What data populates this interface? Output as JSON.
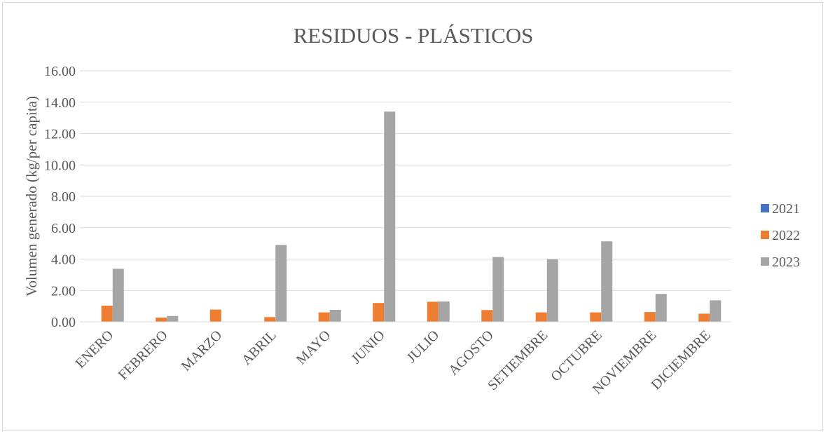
{
  "chart_data": {
    "type": "bar",
    "title": "RESIDUOS - PLÁSTICOS",
    "xlabel": "",
    "ylabel": "Volumen generado (kg/per capita)",
    "ylim": [
      0,
      16
    ],
    "yticks": [
      "0.00",
      "2.00",
      "4.00",
      "6.00",
      "8.00",
      "10.00",
      "12.00",
      "14.00",
      "16.00"
    ],
    "grid": true,
    "legend_position": "right",
    "categories": [
      "ENERO",
      "FEBRERO",
      "MARZO",
      "ABRIL",
      "MAYO",
      "JUNIO",
      "JULIO",
      "AGOSTO",
      "SETIEMBRE",
      "OCTUBRE",
      "NOVIEMBRE",
      "DICIEMBRE"
    ],
    "series": [
      {
        "name": "2021",
        "color": "#4472c4",
        "values": [
          0,
          0.02,
          0,
          0,
          0.02,
          0,
          0.02,
          0,
          0.02,
          0,
          0,
          0
        ]
      },
      {
        "name": "2022",
        "color": "#ed7d31",
        "values": [
          1.03,
          0.27,
          0.78,
          0.3,
          0.6,
          1.2,
          1.28,
          0.75,
          0.6,
          0.6,
          0.62,
          0.52
        ]
      },
      {
        "name": "2023",
        "color": "#a5a5a5",
        "values": [
          3.38,
          0.37,
          0,
          4.9,
          0.76,
          13.4,
          1.3,
          4.13,
          3.98,
          5.13,
          1.78,
          1.37
        ]
      }
    ]
  }
}
